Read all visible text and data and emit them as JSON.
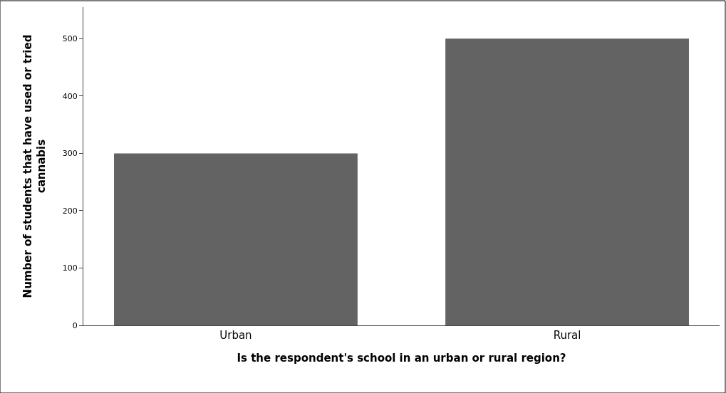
{
  "chart_data": {
    "type": "bar",
    "xlabel": "Is the respondent's school in an urban or rural region?",
    "ylabel": "Number of students that have used or tried cannabis",
    "categories": [
      "Urban",
      "Rural"
    ],
    "values": [
      300,
      500
    ],
    "color": "#636363",
    "ylim": [
      0,
      555
    ],
    "yticks": [
      0,
      100,
      200,
      300,
      400,
      500
    ]
  }
}
